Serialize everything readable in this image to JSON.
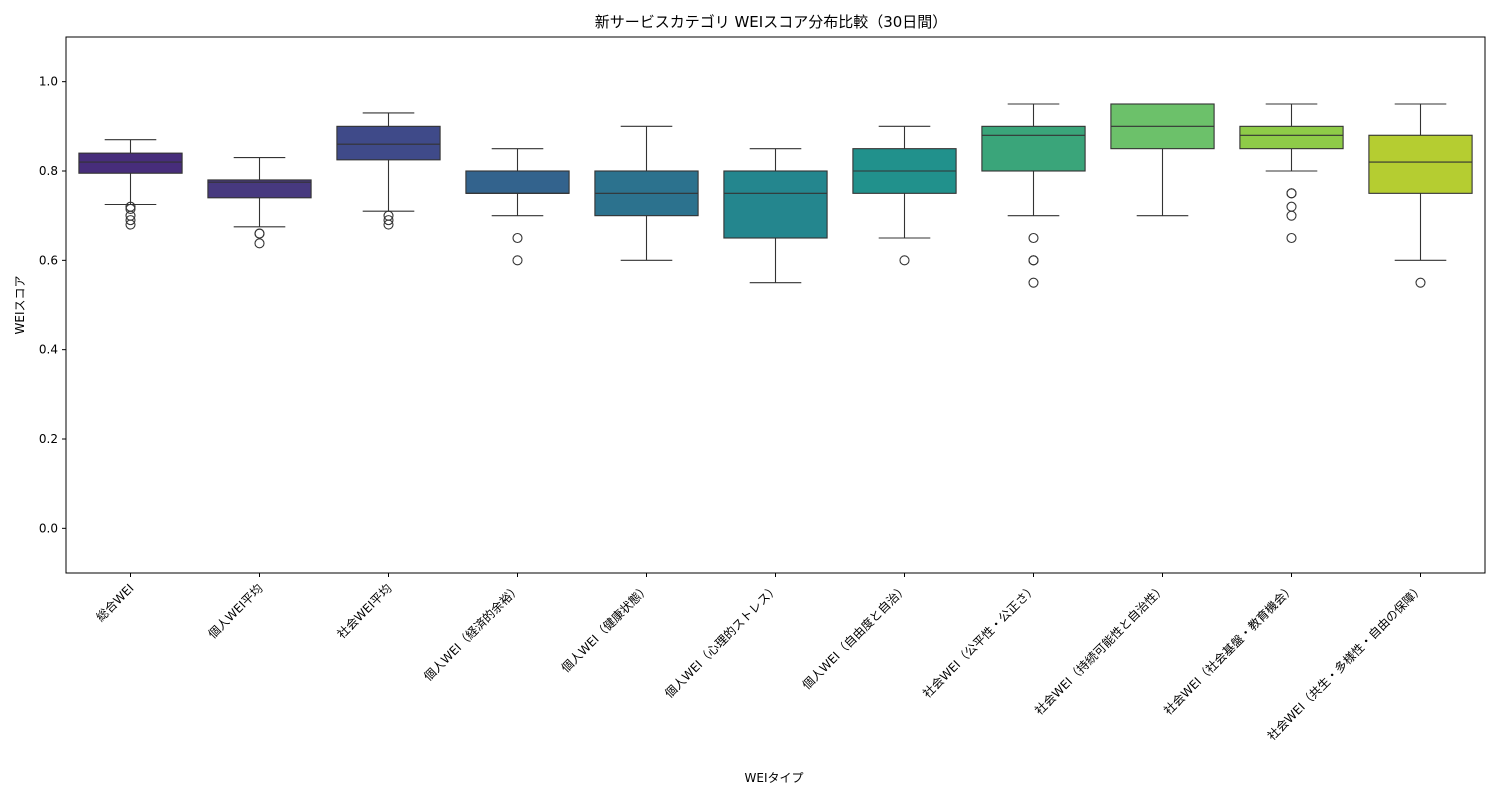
{
  "chart_data": {
    "type": "box",
    "title": "新サービスカテゴリ WEIスコア分布比較（30日間）",
    "xlabel": "WEIタイプ",
    "ylabel": "WEIスコア",
    "ylim": [
      -0.1,
      1.1
    ],
    "yticks": [
      "0.0",
      "0.2",
      "0.4",
      "0.6",
      "0.8",
      "1.0"
    ],
    "grid": false,
    "legend": "none",
    "categories": [
      "総合WEI",
      "個人WEI平均",
      "社会WEI平均",
      "個人WEI（経済的余裕）",
      "個人WEI（健康状態）",
      "個人WEI（心理的ストレス）",
      "個人WEI（自由度と自治）",
      "社会WEI（公平性・公正さ）",
      "社会WEI（持続可能性と自治性）",
      "社会WEI（社会基盤・教育機会）",
      "社会WEI（共生・多様性・自由の保障）"
    ],
    "boxes": [
      {
        "color": "#472d7b",
        "whisker_low": 0.725,
        "q1": 0.795,
        "median": 0.82,
        "q3": 0.84,
        "whisker_high": 0.87,
        "outliers": [
          0.72,
          0.715,
          0.7,
          0.69,
          0.68
        ]
      },
      {
        "color": "#47397f",
        "whisker_low": 0.675,
        "q1": 0.74,
        "median": 0.775,
        "q3": 0.78,
        "whisker_high": 0.83,
        "outliers": [
          0.66,
          0.66,
          0.638
        ]
      },
      {
        "color": "#3f4a89",
        "whisker_low": 0.71,
        "q1": 0.825,
        "median": 0.86,
        "q3": 0.9,
        "whisker_high": 0.93,
        "outliers": [
          0.7,
          0.69,
          0.68
        ]
      },
      {
        "color": "#33638d",
        "whisker_low": 0.7,
        "q1": 0.75,
        "median": 0.75,
        "q3": 0.8,
        "whisker_high": 0.85,
        "outliers": [
          0.65,
          0.6
        ]
      },
      {
        "color": "#2c728e",
        "whisker_low": 0.6,
        "q1": 0.7,
        "median": 0.75,
        "q3": 0.8,
        "whisker_high": 0.9,
        "outliers": []
      },
      {
        "color": "#24868e",
        "whisker_low": 0.55,
        "q1": 0.65,
        "median": 0.75,
        "q3": 0.8,
        "whisker_high": 0.85,
        "outliers": []
      },
      {
        "color": "#21918c",
        "whisker_low": 0.65,
        "q1": 0.75,
        "median": 0.8,
        "q3": 0.85,
        "whisker_high": 0.9,
        "outliers": [
          0.6
        ]
      },
      {
        "color": "#3aa57a",
        "whisker_low": 0.7,
        "q1": 0.8,
        "median": 0.88,
        "q3": 0.9,
        "whisker_high": 0.95,
        "outliers": [
          0.65,
          0.6,
          0.6,
          0.55
        ]
      },
      {
        "color": "#6cc16a",
        "whisker_low": 0.7,
        "q1": 0.85,
        "median": 0.9,
        "q3": 0.95,
        "whisker_high": 0.95,
        "outliers": []
      },
      {
        "color": "#8ecb48",
        "whisker_low": 0.8,
        "q1": 0.85,
        "median": 0.88,
        "q3": 0.9,
        "whisker_high": 0.95,
        "outliers": [
          0.75,
          0.75,
          0.72,
          0.7,
          0.65
        ]
      },
      {
        "color": "#b5cd31",
        "whisker_low": 0.6,
        "q1": 0.75,
        "median": 0.82,
        "q3": 0.88,
        "whisker_high": 0.95,
        "outliers": [
          0.55
        ]
      }
    ]
  }
}
